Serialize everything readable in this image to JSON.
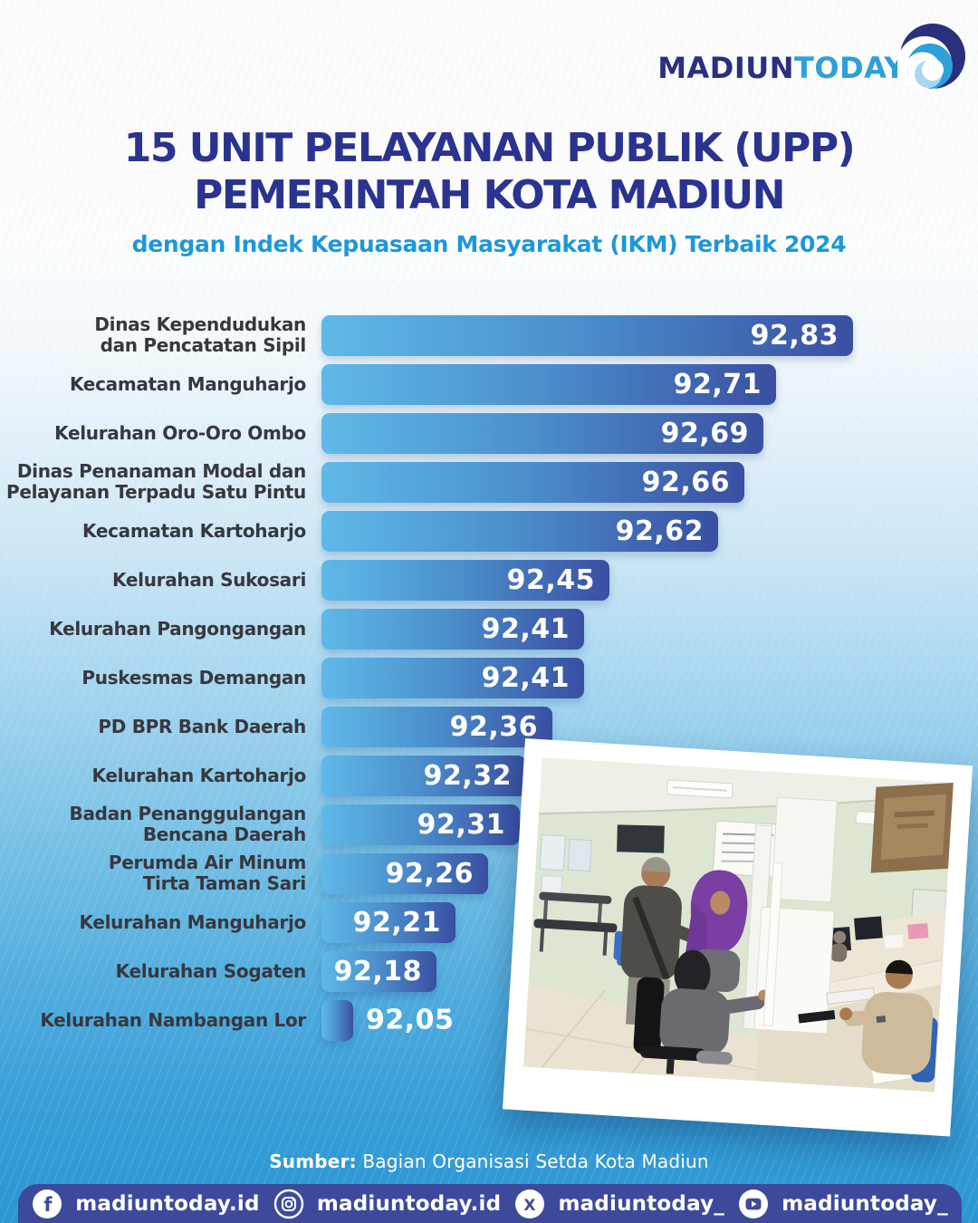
{
  "logo": {
    "primary": "MADIUN",
    "secondary": "TODAY"
  },
  "header": {
    "title_line1": "15 UNIT PELAYANAN PUBLIK (UPP)",
    "title_line2": "PEMERINTAH KOTA MADIUN",
    "subtitle": "dengan Indek Kepuasaan Masyarakat (IKM) Terbaik 2024"
  },
  "chart_data": {
    "type": "bar",
    "orientation": "horizontal",
    "title": "15 Unit Pelayanan Publik (UPP) Pemerintah Kota Madiun",
    "subtitle": "dengan Indek Kepuasaan Masyarakat (IKM) Terbaik 2024",
    "categories": [
      "Dinas Kependudukan\ndan Pencatatan Sipil",
      "Kecamatan Manguharjo",
      "Kelurahan Oro-Oro Ombo",
      "Dinas Penanaman Modal dan\nPelayanan Terpadu Satu Pintu",
      "Kecamatan Kartoharjo",
      "Kelurahan Sukosari",
      "Kelurahan Pangongangan",
      "Puskesmas Demangan",
      "PD BPR Bank Daerah",
      "Kelurahan Kartoharjo",
      "Badan Penanggulangan\nBencana Daerah",
      "Perumda Air Minum\nTirta Taman Sari",
      "Kelurahan Manguharjo",
      "Kelurahan Sogaten",
      "Kelurahan Nambangan Lor"
    ],
    "values": [
      92.83,
      92.71,
      92.69,
      92.66,
      92.62,
      92.45,
      92.41,
      92.41,
      92.36,
      92.32,
      92.31,
      92.26,
      92.21,
      92.18,
      92.05
    ],
    "value_labels": [
      "92,83",
      "92,71",
      "92,69",
      "92,66",
      "92,62",
      "92,45",
      "92,41",
      "92,41",
      "92,36",
      "92,32",
      "92,31",
      "92,26",
      "92,21",
      "92,18",
      "92,05"
    ],
    "xlim": [
      92.0,
      92.9
    ],
    "grid": false,
    "legend": false,
    "bar_gradient": [
      "#5fb9e8",
      "#3a4fa2"
    ]
  },
  "source": {
    "prefix": "Sumber:",
    "text": "Bagian Organisasi Setda Kota Madiun"
  },
  "footer": {
    "background": "#3d4a9b",
    "items": [
      {
        "icon": "facebook-icon",
        "label": "madiuntoday.id"
      },
      {
        "icon": "instagram-icon",
        "label": "madiuntoday.id"
      },
      {
        "icon": "x-icon",
        "label": "madiuntoday_"
      },
      {
        "icon": "youtube-icon",
        "label": "madiuntoday_"
      }
    ]
  },
  "colors": {
    "title_navy": "#2b3390",
    "subtitle_blue": "#1e97d9",
    "label_dark": "#37383e",
    "bar_light": "#5fb9e8",
    "bar_dark": "#3a4fa2",
    "background_bottom": "#2996d3",
    "footer_navy": "#3d4a9b"
  }
}
